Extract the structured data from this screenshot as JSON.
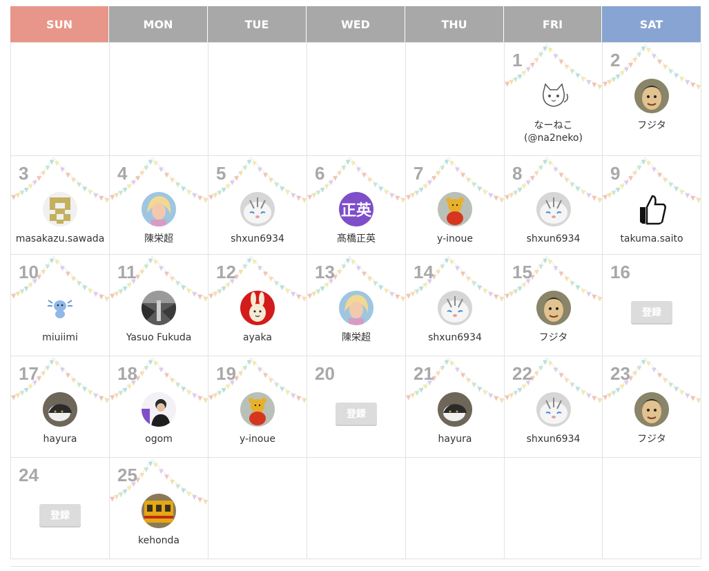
{
  "weekdays": [
    "SUN",
    "MON",
    "TUE",
    "WED",
    "THU",
    "FRI",
    "SAT"
  ],
  "colors": {
    "sunday_header": "#e8968a",
    "saturday_header": "#88a4d2",
    "weekday_header": "#a8a8a8",
    "day_number": "#a8a8a8",
    "register_button": "#dcdcdc",
    "bunting": [
      "#f0b8a8",
      "#f4d9a0",
      "#bfe3c4",
      "#a8dcd8",
      "#f2e6a0",
      "#d8c4e8"
    ]
  },
  "register_label": "登録",
  "weeks": [
    [
      {
        "day": ""
      },
      {
        "day": ""
      },
      {
        "day": ""
      },
      {
        "day": ""
      },
      {
        "day": ""
      },
      {
        "day": "1",
        "user": "なーねこ\n(@na2neko)",
        "avatar": "cat-drawing-avatar"
      },
      {
        "day": "2",
        "user": "フジタ",
        "avatar": "caricature-avatar"
      }
    ],
    [
      {
        "day": "3",
        "user": "masakazu.sawada",
        "avatar": "pixel-identicon-avatar"
      },
      {
        "day": "4",
        "user": "陳栄超",
        "avatar": "blonde-portrait-avatar"
      },
      {
        "day": "5",
        "user": "shxun6934",
        "avatar": "white-cat-avatar"
      },
      {
        "day": "6",
        "user": "髙橋正英",
        "avatar": "kanji-initials-avatar",
        "initials": "正英"
      },
      {
        "day": "7",
        "user": "y-inoue",
        "avatar": "plush-bear-avatar"
      },
      {
        "day": "8",
        "user": "shxun6934",
        "avatar": "white-cat-avatar"
      },
      {
        "day": "9",
        "user": "takuma.saito",
        "avatar": "thumbs-up-avatar"
      }
    ],
    [
      {
        "day": "10",
        "user": "miuiimi",
        "avatar": "axolotl-avatar"
      },
      {
        "day": "11",
        "user": "Yasuo Fukuda",
        "avatar": "street-photo-avatar"
      },
      {
        "day": "12",
        "user": "ayaka",
        "avatar": "rabbit-illustration-avatar"
      },
      {
        "day": "13",
        "user": "陳栄超",
        "avatar": "blonde-portrait-avatar"
      },
      {
        "day": "14",
        "user": "shxun6934",
        "avatar": "white-cat-avatar"
      },
      {
        "day": "15",
        "user": "フジタ",
        "avatar": "caricature-avatar"
      },
      {
        "day": "16",
        "register": true
      }
    ],
    [
      {
        "day": "17",
        "user": "hayura",
        "avatar": "cat-photo-avatar"
      },
      {
        "day": "18",
        "user": "ogom",
        "avatar": "person-photo-avatar"
      },
      {
        "day": "19",
        "user": "y-inoue",
        "avatar": "plush-bear-avatar"
      },
      {
        "day": "20",
        "register": true
      },
      {
        "day": "21",
        "user": "hayura",
        "avatar": "cat-photo-avatar"
      },
      {
        "day": "22",
        "user": "shxun6934",
        "avatar": "white-cat-avatar"
      },
      {
        "day": "23",
        "user": "フジタ",
        "avatar": "caricature-avatar"
      }
    ],
    [
      {
        "day": "24",
        "register": true
      },
      {
        "day": "25",
        "user": "kehonda",
        "avatar": "tram-photo-avatar"
      },
      {
        "day": ""
      },
      {
        "day": ""
      },
      {
        "day": ""
      },
      {
        "day": ""
      },
      {
        "day": ""
      }
    ]
  ]
}
